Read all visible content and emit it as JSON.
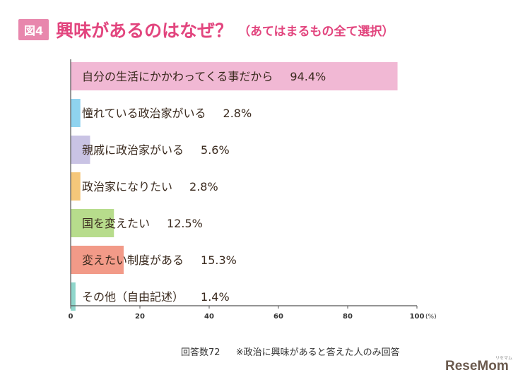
{
  "header": {
    "figure_label": "図4",
    "title": "興味があるのはなぜ？",
    "subtitle": "（あてはまるもの全て選択）"
  },
  "chart_data": {
    "type": "bar",
    "orientation": "horizontal",
    "categories": [
      "自分の生活にかかわってくる事だから",
      "憧れている政治家がいる",
      "親戚に政治家がいる",
      "政治家になりたい",
      "国を変えたい",
      "変えたい制度がある",
      "その他（自由記述）"
    ],
    "values": [
      94.4,
      2.8,
      5.6,
      2.8,
      12.5,
      15.3,
      1.4
    ],
    "value_labels": [
      "94.4%",
      "2.8%",
      "5.6%",
      "2.8%",
      "12.5%",
      "15.3%",
      "1.4%"
    ],
    "colors": [
      "#f1b8d4",
      "#8fd3ef",
      "#c9c3e4",
      "#f5c77a",
      "#b7dc8c",
      "#f29a88",
      "#8fd6cb"
    ],
    "xlim": [
      0,
      100
    ],
    "xticks": [
      0,
      20,
      40,
      60,
      80,
      100
    ],
    "xunit": "(%)",
    "grid": false
  },
  "footnote": {
    "respondents": "回答数72",
    "note": "※政治に興味があると答えた人のみ回答"
  },
  "brand": {
    "name": "ReseMom",
    "small_text": "リセマム"
  }
}
